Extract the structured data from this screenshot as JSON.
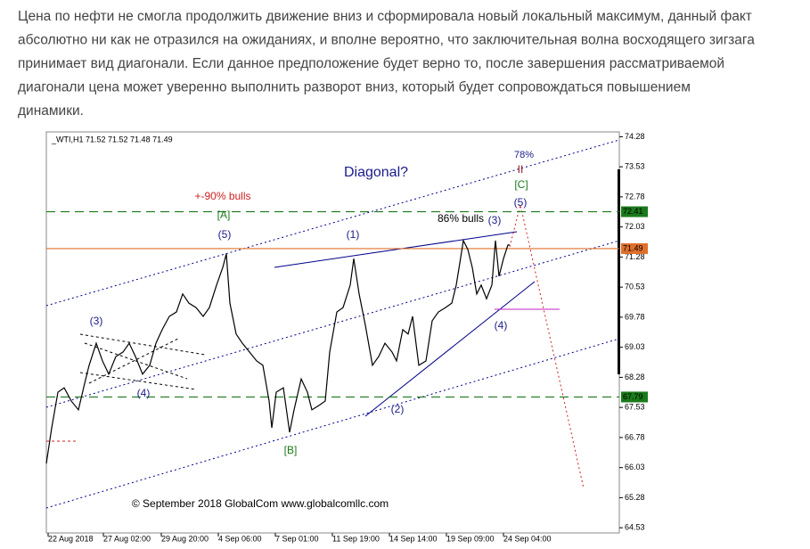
{
  "paragraph_lines": [
    "Цена по нефти не смогла продолжить движение вниз и сформировала новый локальный максимум, данный факт",
    "абсолютно ни как не отразился на ожиданиях, и вполне вероятно, что заключительная волна восходящего зигзага",
    "принимает вид диагонали. Если данное предположение будет верно то, после завершения рассматриваемой",
    "диагонали цена может уверенно выполнить разворот вниз, который будет сопровождаться повышением",
    "динамики."
  ],
  "chart_data": {
    "type": "line",
    "header": "_WTI,H1  71.52 71.52 71.48 71.49",
    "series": [
      {
        "color": "#000000",
        "x": [
          0,
          6,
          13,
          20,
          28,
          36,
          43,
          48,
          56,
          63,
          70,
          78,
          86,
          93,
          100,
          108,
          116,
          123,
          130,
          138,
          146,
          153,
          160,
          168,
          176,
          183,
          191,
          198,
          202,
          206,
          213,
          220,
          228,
          236,
          243,
          250,
          253,
          258,
          266,
          273,
          278,
          286,
          293,
          298,
          306,
          313,
          318,
          326,
          333,
          341,
          345,
          351,
          358,
          366,
          373,
          380,
          388,
          393,
          400,
          406,
          411,
          418,
          426,
          433,
          440,
          448,
          455,
          460,
          464,
          468,
          473,
          478,
          483,
          488,
          494,
          500,
          504,
          508,
          513,
          518,
          520
        ],
        "values": [
          66.13,
          67.02,
          67.91,
          68.02,
          67.69,
          67.47,
          68.13,
          68.58,
          69.13,
          68.69,
          68.36,
          68.8,
          68.91,
          69.13,
          68.8,
          68.36,
          68.58,
          69.13,
          69.47,
          69.8,
          69.91,
          70.36,
          70.13,
          70.02,
          69.8,
          70.02,
          70.58,
          71.02,
          71.36,
          70.13,
          69.36,
          69.13,
          68.91,
          68.69,
          68.58,
          67.69,
          67.02,
          67.91,
          68.02,
          66.91,
          67.47,
          68.24,
          67.91,
          67.47,
          67.58,
          67.69,
          68.91,
          69.91,
          70.02,
          70.58,
          71.24,
          70.36,
          69.58,
          68.58,
          68.8,
          69.13,
          68.91,
          68.69,
          69.47,
          69.36,
          69.8,
          68.58,
          68.69,
          69.69,
          69.91,
          70.02,
          70.13,
          70.58,
          71.13,
          71.69,
          71.47,
          71.02,
          70.36,
          70.58,
          70.24,
          70.58,
          71.69,
          70.8,
          71.24,
          71.58,
          71.58
        ]
      }
    ],
    "xlim": [
      0,
      643
    ],
    "xticks": [
      {
        "value": 2,
        "label": "22 Aug 2018"
      },
      {
        "value": 64,
        "label": "27 Aug 02:00"
      },
      {
        "value": 129,
        "label": "29 Aug 20:00"
      },
      {
        "value": 193,
        "label": "4 Sep 06:00"
      },
      {
        "value": 257,
        "label": "7 Sep 01:00"
      },
      {
        "value": 321,
        "label": "11 Sep 19:00"
      },
      {
        "value": 385,
        "label": "14 Sep 14:00"
      },
      {
        "value": 449,
        "label": "19 Sep 09:00"
      },
      {
        "value": 513,
        "label": "24 Sep 04:00"
      }
    ],
    "ylim": [
      64.4,
      74.4
    ],
    "yticks": [
      74.28,
      73.53,
      72.78,
      72.03,
      71.28,
      70.53,
      69.78,
      69.03,
      68.28,
      67.53,
      66.78,
      66.03,
      65.28,
      64.53
    ],
    "price_levels": [
      {
        "value": 72.41,
        "color": "#1a7a1a"
      },
      {
        "value": 71.49,
        "color": "#e0702a"
      },
      {
        "value": 67.79,
        "color": "#1a7a1a"
      }
    ],
    "annotations": [
      "Diagonal?",
      "+-90% bulls",
      "[A]",
      "(5)",
      "(1)",
      "86% bulls",
      "(3)",
      "(5)",
      "[C]",
      "II",
      "78%",
      "(3)",
      "(4)",
      "(4)",
      "(2)",
      "[B]",
      "© September 2018 GlobalCom www.globalcomllc.com"
    ]
  }
}
